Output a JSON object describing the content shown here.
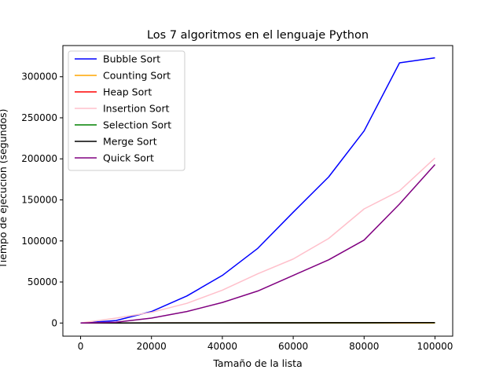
{
  "chart_data": {
    "type": "line",
    "title": "Los 7 algoritmos en el lenguaje Python",
    "xlabel": "Tamaño de la lista",
    "ylabel": "Tiempo de ejecución (segundos)",
    "xlim": [
      -5000,
      105000
    ],
    "ylim": [
      -16000,
      338000
    ],
    "xticks": [
      0,
      20000,
      40000,
      60000,
      80000,
      100000
    ],
    "xtick_labels": [
      "0",
      "20000",
      "40000",
      "60000",
      "80000",
      "100000"
    ],
    "yticks": [
      0,
      50000,
      100000,
      150000,
      200000,
      250000,
      300000
    ],
    "ytick_labels": [
      "0",
      "50000",
      "100000",
      "150000",
      "200000",
      "250000",
      "300000"
    ],
    "grid": false,
    "legend_position": "upper-left",
    "x": [
      0,
      10000,
      20000,
      30000,
      40000,
      50000,
      60000,
      70000,
      80000,
      90000,
      100000
    ],
    "series": [
      {
        "name": "Bubble Sort",
        "color": "#0000ff",
        "values": [
          0,
          3000,
          14000,
          33000,
          58000,
          91000,
          135000,
          178000,
          234000,
          317000,
          323000
        ]
      },
      {
        "name": "Counting Sort",
        "color": "#ffa500",
        "values": [
          0,
          5,
          10,
          15,
          20,
          25,
          30,
          35,
          40,
          45,
          50
        ]
      },
      {
        "name": "Heap Sort",
        "color": "#ff0000",
        "values": [
          0,
          40,
          90,
          140,
          190,
          240,
          290,
          340,
          390,
          440,
          490
        ]
      },
      {
        "name": "Insertion Sort",
        "color": "#ffc0cb",
        "values": [
          0,
          6000,
          13000,
          24000,
          40000,
          60000,
          78000,
          103000,
          139000,
          161000,
          201000
        ]
      },
      {
        "name": "Selection Sort",
        "color": "#008000",
        "values": [
          0,
          30,
          70,
          110,
          150,
          190,
          230,
          270,
          310,
          350,
          390
        ]
      },
      {
        "name": "Merge Sort",
        "color": "#000000",
        "values": [
          0,
          50,
          100,
          150,
          200,
          250,
          300,
          350,
          400,
          450,
          500
        ]
      },
      {
        "name": "Quick Sort",
        "color": "#800080",
        "values": [
          0,
          1000,
          6000,
          14000,
          25000,
          39000,
          58000,
          77000,
          101000,
          145000,
          193000
        ]
      }
    ]
  }
}
